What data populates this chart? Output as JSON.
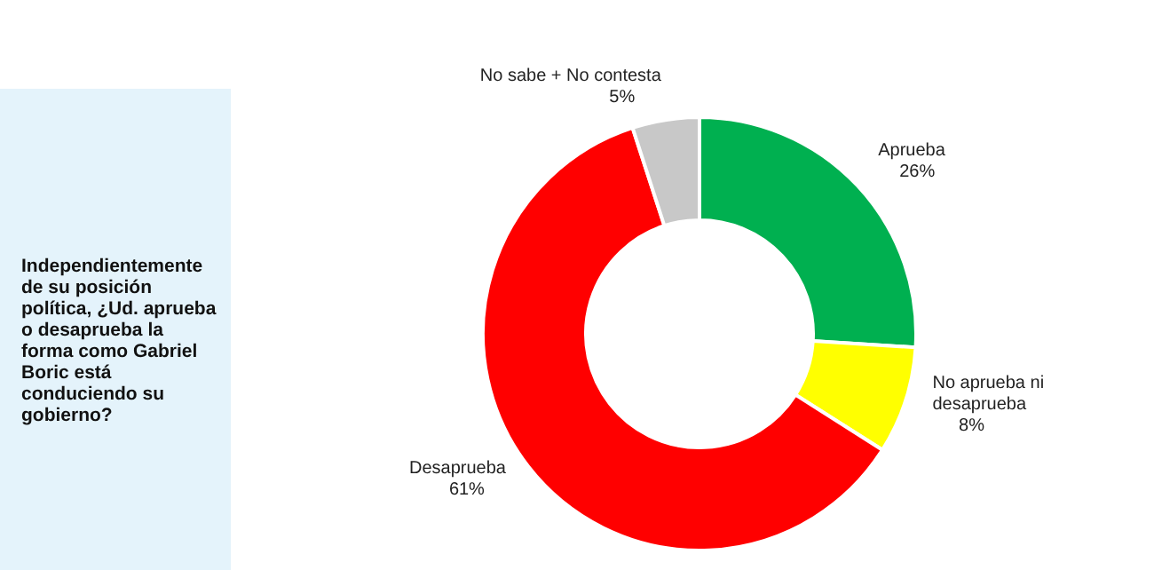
{
  "chart_data": {
    "type": "donut",
    "title": "Independientemente de su posición política, ¿Ud. aprueba o desaprueba la forma como Gabriel Boric está conduciendo su gobierno?",
    "categories": [
      "Aprueba",
      "No aprueba ni desaprueba",
      "Desaprueba",
      "No sabe + No contesta"
    ],
    "values": [
      26,
      8,
      61,
      5
    ],
    "colors": [
      "#00b050",
      "#ffff00",
      "#ff0000",
      "#c8c8c8"
    ],
    "value_labels": [
      "26%",
      "8%",
      "61%",
      "5%"
    ],
    "legend": false
  }
}
